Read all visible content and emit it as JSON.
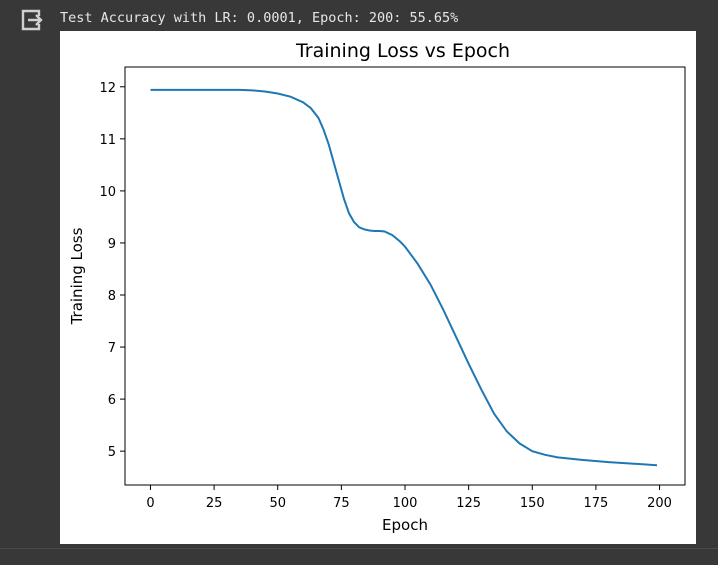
{
  "cell": {
    "output_icon": "output-exit-icon",
    "output_text": "Test Accuracy with LR: 0.0001, Epoch: 200: 55.65%"
  },
  "colors": {
    "background": "#383838",
    "line": "#1f77b4",
    "text": "#e6e6e6"
  },
  "chart_data": {
    "type": "line",
    "title": "Training Loss vs Epoch",
    "xlabel": "Epoch",
    "ylabel": "Training Loss",
    "xlim": [
      -10,
      210
    ],
    "ylim": [
      4.35,
      12.38
    ],
    "xticks": [
      0,
      25,
      50,
      75,
      100,
      125,
      150,
      175,
      200
    ],
    "yticks": [
      5,
      6,
      7,
      8,
      9,
      10,
      11,
      12
    ],
    "grid": false,
    "series": [
      {
        "x": [
          0,
          10,
          20,
          30,
          35,
          40,
          45,
          50,
          55,
          60,
          63,
          66,
          68,
          70,
          72,
          74,
          76,
          78,
          80,
          82,
          84,
          86,
          88,
          90,
          92,
          95,
          98,
          100,
          105,
          110,
          115,
          120,
          125,
          130,
          135,
          140,
          145,
          150,
          155,
          160,
          170,
          180,
          190,
          199
        ],
        "y": [
          11.94,
          11.94,
          11.94,
          11.94,
          11.94,
          11.93,
          11.91,
          11.87,
          11.81,
          11.7,
          11.59,
          11.4,
          11.18,
          10.9,
          10.55,
          10.2,
          9.85,
          9.57,
          9.4,
          9.3,
          9.26,
          9.24,
          9.23,
          9.23,
          9.22,
          9.15,
          9.03,
          8.93,
          8.6,
          8.2,
          7.72,
          7.2,
          6.68,
          6.18,
          5.72,
          5.38,
          5.15,
          5.0,
          4.93,
          4.88,
          4.83,
          4.79,
          4.76,
          4.73
        ]
      }
    ]
  }
}
